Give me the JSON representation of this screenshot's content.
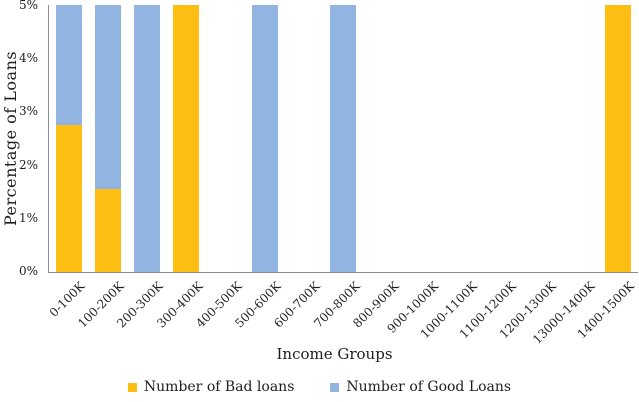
{
  "chart_data": {
    "type": "bar",
    "stacked": true,
    "title": "",
    "xlabel": "Income Groups",
    "ylabel": "Percentage of Loans",
    "ymax": 5,
    "ylim": [
      0,
      5
    ],
    "yticks": [
      "0%",
      "1%",
      "2%",
      "3%",
      "4%",
      "5%"
    ],
    "grid": false,
    "legend_position": "bottom",
    "categories": [
      "0-100K",
      "100-200K",
      "200-300K",
      "300-400K",
      "400-500K",
      "500-600K",
      "600-700K",
      "700-800K",
      "800-900K",
      "900-1000K",
      "1000-1100K",
      "1100-1200K",
      "1200-1300K",
      "13000-1400K",
      "1400-1500K"
    ],
    "series": [
      {
        "name": "Number of Bad loans",
        "color": "#FCBE13",
        "values": [
          2.75,
          1.55,
          0,
          5,
          0,
          0,
          0,
          0,
          0,
          0,
          0,
          0,
          0,
          0,
          5
        ]
      },
      {
        "name": "Number of Good Loans",
        "color": "#92B4E0",
        "values": [
          2.25,
          3.45,
          5,
          0,
          0,
          5,
          0,
          5,
          0,
          0,
          0,
          0,
          0,
          0,
          0
        ]
      }
    ],
    "axis_color": "#8C8C8C",
    "text_color": "#1E1E1E"
  }
}
